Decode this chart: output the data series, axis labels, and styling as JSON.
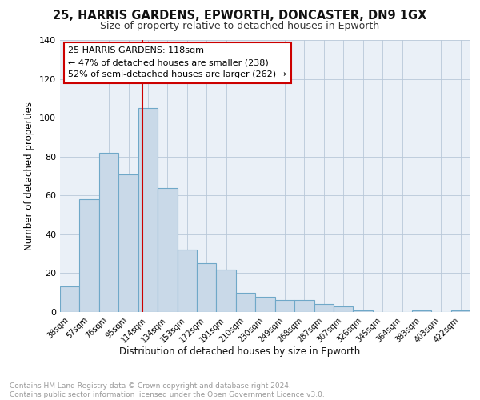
{
  "title1": "25, HARRIS GARDENS, EPWORTH, DONCASTER, DN9 1GX",
  "title2": "Size of property relative to detached houses in Epworth",
  "xlabel": "Distribution of detached houses by size in Epworth",
  "ylabel": "Number of detached properties",
  "bar_labels": [
    "38sqm",
    "57sqm",
    "76sqm",
    "95sqm",
    "114sqm",
    "134sqm",
    "153sqm",
    "172sqm",
    "191sqm",
    "210sqm",
    "230sqm",
    "249sqm",
    "268sqm",
    "287sqm",
    "307sqm",
    "326sqm",
    "345sqm",
    "364sqm",
    "383sqm",
    "403sqm",
    "422sqm"
  ],
  "bar_values": [
    13,
    58,
    82,
    71,
    105,
    64,
    32,
    25,
    22,
    10,
    8,
    6,
    6,
    4,
    3,
    1,
    0,
    0,
    1,
    0,
    1
  ],
  "bar_color": "#c9d9e8",
  "bar_edgecolor": "#6fa8c8",
  "property_label": "25 HARRIS GARDENS: 118sqm",
  "annotation_line1": "← 47% of detached houses are smaller (238)",
  "annotation_line2": "52% of semi-detached houses are larger (262) →",
  "vline_color": "#cc0000",
  "box_color": "#ffffff",
  "box_edgecolor": "#cc0000",
  "footer": "Contains HM Land Registry data © Crown copyright and database right 2024.\nContains public sector information licensed under the Open Government Licence v3.0.",
  "plot_bg_color": "#eaf0f7",
  "ylim": [
    0,
    140
  ],
  "yticks": [
    0,
    20,
    40,
    60,
    80,
    100,
    120,
    140
  ]
}
